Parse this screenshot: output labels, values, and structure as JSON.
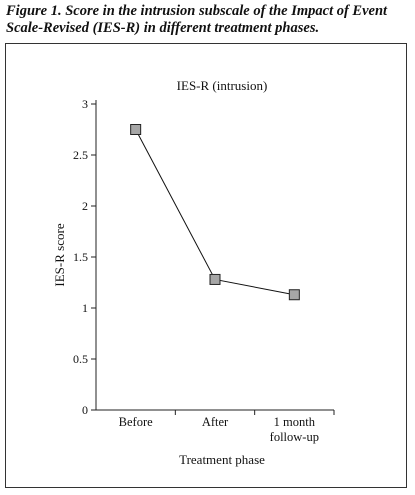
{
  "caption": "Figure 1. Score in the intrusion subscale of the Impact of Event Scale-Revised (IES-R) in different treatment phases.",
  "chart_data": {
    "type": "line",
    "title": "IES-R (intrusion)",
    "xlabel": "Treatment phase",
    "ylabel": "IES-R score",
    "categories": [
      "Before",
      "After",
      "1 month follow-up"
    ],
    "category_lines": [
      [
        "Before"
      ],
      [
        "After"
      ],
      [
        "1 month",
        "follow-up"
      ]
    ],
    "series": [
      {
        "values": [
          2.75,
          1.28,
          1.13
        ]
      }
    ],
    "yticks": [
      "0",
      "0.5",
      "1",
      "1.5",
      "2",
      "2.5",
      "3"
    ],
    "ylim": [
      0,
      3
    ],
    "grid": false,
    "legend": "none",
    "marker": "square",
    "marker_color": "#a6a6a6",
    "line_color": "#111111"
  }
}
